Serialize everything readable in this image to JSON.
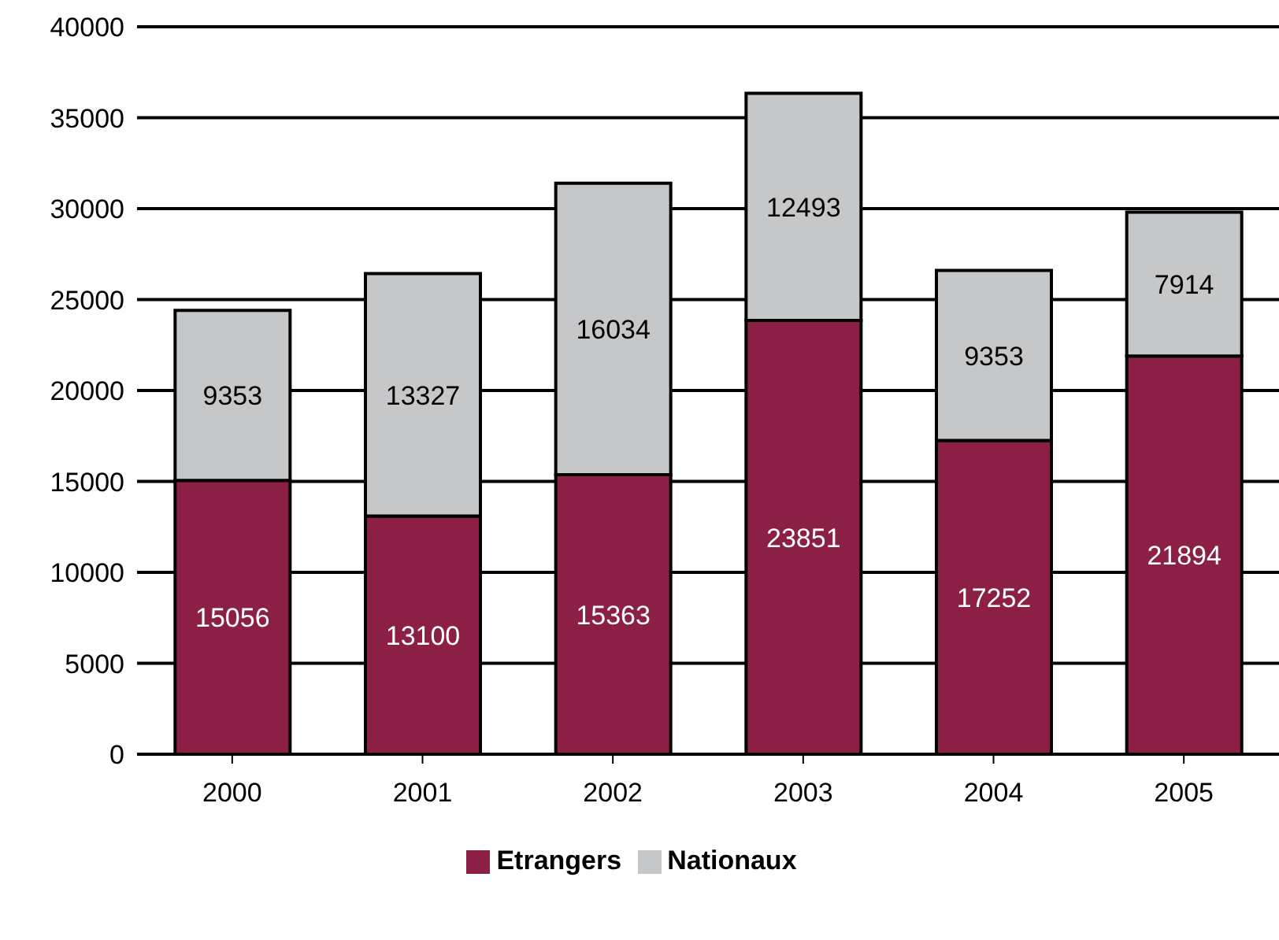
{
  "chart_data": {
    "type": "bar",
    "stacked": true,
    "categories": [
      "2000",
      "2001",
      "2002",
      "2003",
      "2004",
      "2005"
    ],
    "series": [
      {
        "name": "Etrangers",
        "color": "#8b1f46",
        "values": [
          15056,
          13100,
          15363,
          23851,
          17252,
          21894
        ]
      },
      {
        "name": "Nationaux",
        "color": "#c6c7c9",
        "values": [
          9353,
          13327,
          16034,
          12493,
          9353,
          7914
        ]
      }
    ],
    "ylim": [
      0,
      40000
    ],
    "yticks": [
      0,
      5000,
      10000,
      15000,
      20000,
      25000,
      30000,
      35000,
      40000
    ],
    "grid": "y",
    "legend": "bottom",
    "data_labels": true
  }
}
